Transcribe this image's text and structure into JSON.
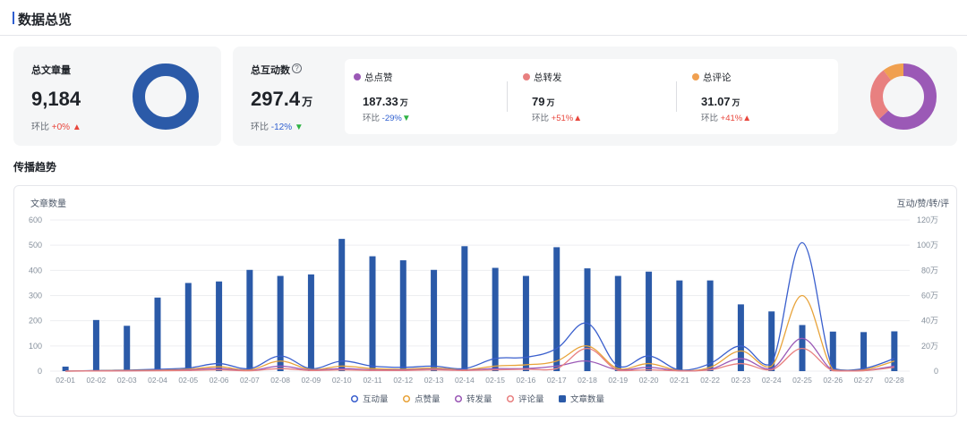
{
  "page_title": "数据总览",
  "articles_card": {
    "label": "总文章量",
    "value": "9,184",
    "change_prefix": "环比",
    "change": "+0%"
  },
  "interaction_card": {
    "label": "总互动数",
    "value": "297.4",
    "unit": "万",
    "change_prefix": "环比",
    "change": "-12%",
    "metrics": [
      {
        "name": "总点赞",
        "value": "187.33",
        "unit": "万",
        "change_prefix": "环比",
        "change": "-29%",
        "direction": "down",
        "color": "#9b59b6"
      },
      {
        "name": "总转发",
        "value": "79",
        "unit": "万",
        "change_prefix": "环比",
        "change": "+51%",
        "direction": "up",
        "color": "#e88080"
      },
      {
        "name": "总评论",
        "value": "31.07",
        "unit": "万",
        "change_prefix": "环比",
        "change": "+41%",
        "direction": "up",
        "color": "#f0a050"
      }
    ],
    "donut": [
      {
        "name": "总点赞",
        "value": 187.33,
        "color": "#9b59b6"
      },
      {
        "name": "总转发",
        "value": 79,
        "color": "#e88080"
      },
      {
        "name": "总评论",
        "value": 31.07,
        "color": "#f0a050"
      }
    ]
  },
  "articles_donut_color": "#2b5aa8",
  "trend_section_title": "传播趋势",
  "chart_data": {
    "type": "bar",
    "ylabel": "文章数量",
    "y2label": "互动/赞/转/评",
    "ylim": [
      0,
      600
    ],
    "y2lim": [
      0,
      120
    ],
    "y_ticks": [
      "0",
      "100",
      "200",
      "300",
      "400",
      "500",
      "600"
    ],
    "y2_ticks": [
      "0",
      "20万",
      "40万",
      "60万",
      "80万",
      "100万",
      "120万"
    ],
    "categories": [
      "02-01",
      "02-02",
      "02-03",
      "02-04",
      "02-05",
      "02-06",
      "02-07",
      "02-08",
      "02-09",
      "02-10",
      "02-11",
      "02-12",
      "02-13",
      "02-14",
      "02-15",
      "02-16",
      "02-17",
      "02-18",
      "02-19",
      "02-20",
      "02-21",
      "02-22",
      "02-23",
      "02-24",
      "02-25",
      "02-26",
      "02-27",
      "02-28"
    ],
    "series": [
      {
        "name": "文章数量",
        "kind": "bar",
        "axis": "left",
        "color": "#2b5aa8",
        "values": [
          18,
          203,
          180,
          292,
          350,
          356,
          402,
          378,
          384,
          525,
          456,
          440,
          402,
          496,
          410,
          378,
          492,
          408,
          378,
          395,
          360,
          360,
          265,
          237,
          183,
          157,
          155,
          158
        ]
      },
      {
        "name": "互动量",
        "kind": "line",
        "axis": "right",
        "color": "#3a5fcd",
        "values": [
          0,
          0.5,
          0.8,
          1.5,
          2.5,
          6,
          2,
          12,
          2,
          8,
          4,
          3,
          4,
          2,
          10,
          11,
          18,
          38,
          4,
          12,
          1,
          6,
          20,
          6,
          102,
          2,
          2,
          10
        ]
      },
      {
        "name": "点赞量",
        "kind": "line",
        "axis": "right",
        "color": "#e8a33a",
        "values": [
          0,
          0.3,
          0.5,
          0.8,
          1.5,
          3.5,
          1,
          8,
          1.2,
          4,
          2,
          1.5,
          2.5,
          1,
          4,
          5,
          8,
          20,
          2,
          6,
          0.5,
          3,
          16,
          4,
          60,
          1,
          1,
          8
        ]
      },
      {
        "name": "转发量",
        "kind": "line",
        "axis": "right",
        "color": "#9b59b6",
        "values": [
          0,
          0.2,
          0.3,
          0.5,
          1,
          2,
          0.5,
          4,
          0.8,
          2,
          1,
          1,
          1.5,
          0.8,
          2,
          2,
          4,
          8,
          1,
          3,
          0.3,
          1.5,
          10,
          2,
          26,
          0.5,
          0.5,
          4
        ]
      },
      {
        "name": "评论量",
        "kind": "line",
        "axis": "right",
        "color": "#e88080",
        "values": [
          0,
          0.1,
          0.2,
          0.3,
          0.5,
          1,
          0.3,
          2,
          0.5,
          1,
          0.5,
          0.5,
          1,
          0.5,
          1,
          1.5,
          2,
          18,
          0.5,
          1,
          0.2,
          1,
          6,
          1,
          18,
          0.3,
          0.3,
          3
        ]
      }
    ],
    "legend_order": [
      "互动量",
      "点赞量",
      "转发量",
      "评论量",
      "文章数量"
    ],
    "legend_position": "bottom"
  }
}
